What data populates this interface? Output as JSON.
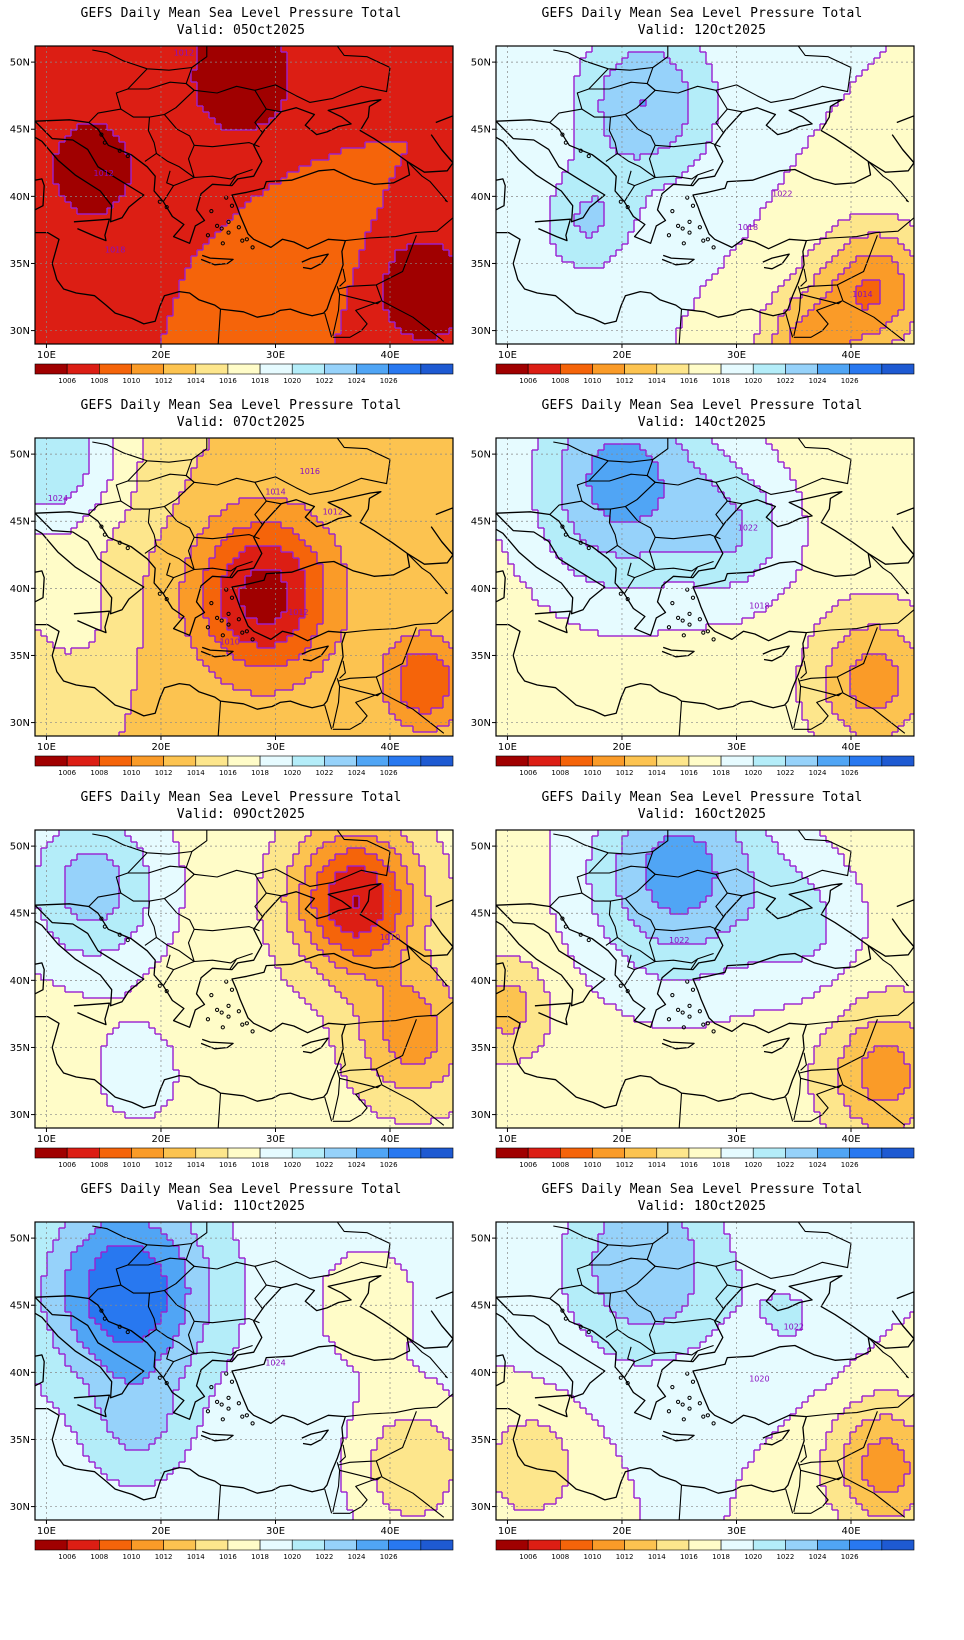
{
  "palette": [
    "#a00000",
    "#dc1e14",
    "#f5640a",
    "#fa9b28",
    "#fcc350",
    "#fde68c",
    "#fffcc8",
    "#e6fbff",
    "#b4edf9",
    "#96d2fa",
    "#50a5f5",
    "#2878f0",
    "#1e5ad2"
  ],
  "contour_color": "#9a1fd1",
  "axes": {
    "lon_ticks": [
      "10E",
      "20E",
      "30E",
      "40E"
    ],
    "lat_ticks": [
      "50N",
      "45N",
      "40N",
      "35N",
      "30N"
    ]
  },
  "legend": {
    "labels": [
      "1006",
      "1008",
      "1010",
      "1012",
      "1014",
      "1016",
      "1018",
      "1020",
      "1022",
      "1024",
      "1026"
    ]
  },
  "panels": [
    {
      "title": "GEFS Daily Mean Sea Level Pressure Total",
      "valid": "Valid: 05Oct2025",
      "base": 8,
      "centers": [
        [
          14,
          42,
          -5,
          3.5
        ],
        [
          43,
          33,
          -6,
          3.5
        ],
        [
          27,
          49,
          -4,
          5
        ],
        [
          33,
          37,
          1,
          4
        ]
      ],
      "labels": [
        {
          "text": "1012",
          "lon": 15,
          "lat": 41.5
        },
        {
          "text": "1018",
          "lon": 16,
          "lat": 35.8
        },
        {
          "text": "1012",
          "lon": 22,
          "lat": 50.5
        }
      ]
    },
    {
      "title": "GEFS Daily Mean Sea Level Pressure Total",
      "valid": "Valid: 12Oct2025",
      "base": 18,
      "centers": [
        [
          22,
          47,
          6,
          6
        ],
        [
          17,
          38,
          4,
          4
        ],
        [
          42,
          33,
          -8,
          5
        ],
        [
          36,
          29,
          -6,
          4
        ]
      ],
      "labels": [
        {
          "text": "1022",
          "lon": 34,
          "lat": 40
        },
        {
          "text": "1018",
          "lon": 31,
          "lat": 37.5
        },
        {
          "text": "1014",
          "lon": 41,
          "lat": 32.5
        }
      ]
    },
    {
      "title": "GEFS Daily Mean Sea Level Pressure Total",
      "valid": "Valid: 07Oct2025",
      "base": 14,
      "centers": [
        [
          29,
          39.5,
          -9,
          6
        ],
        [
          43,
          33,
          -6,
          3.5
        ],
        [
          10,
          50,
          8,
          7
        ],
        [
          12,
          38,
          3,
          4
        ]
      ],
      "labels": [
        {
          "text": "1016",
          "lon": 33,
          "lat": 48.5
        },
        {
          "text": "1014",
          "lon": 30,
          "lat": 47
        },
        {
          "text": "1012",
          "lon": 35,
          "lat": 45.5
        },
        {
          "text": "1012",
          "lon": 32,
          "lat": 38
        },
        {
          "text": "1010",
          "lon": 26,
          "lat": 35.8
        },
        {
          "text": "1024",
          "lon": 11,
          "lat": 46.5
        }
      ]
    },
    {
      "title": "GEFS Daily Mean Sea Level Pressure Total",
      "valid": "Valid: 14Oct2025",
      "base": 17,
      "centers": [
        [
          20,
          48,
          8,
          8
        ],
        [
          42,
          33,
          -6,
          5
        ],
        [
          30,
          44,
          4,
          5
        ]
      ],
      "labels": [
        {
          "text": "1022",
          "lon": 31,
          "lat": 44.3
        },
        {
          "text": "1018",
          "lon": 32,
          "lat": 38.5
        }
      ]
    },
    {
      "title": "GEFS Daily Mean Sea Level Pressure Total",
      "valid": "Valid: 09Oct2025",
      "base": 17,
      "centers": [
        [
          37,
          46,
          -11,
          5.5
        ],
        [
          42,
          36,
          -6,
          5
        ],
        [
          14,
          47,
          6,
          6
        ],
        [
          18,
          33,
          2,
          4
        ]
      ],
      "labels": [
        {
          "text": "1010",
          "lon": 40,
          "lat": 43
        }
      ]
    },
    {
      "title": "GEFS Daily Mean Sea Level Pressure Total",
      "valid": "Valid: 16Oct2025",
      "base": 17,
      "centers": [
        [
          25,
          48,
          8,
          8
        ],
        [
          43,
          33,
          -6,
          5
        ],
        [
          10,
          38,
          -4,
          3.5
        ],
        [
          36,
          44,
          3,
          5
        ]
      ],
      "labels": [
        {
          "text": "1022",
          "lon": 25,
          "lat": 42.8
        }
      ]
    },
    {
      "title": "GEFS Daily Mean Sea Level Pressure Total",
      "valid": "Valid: 11Oct2025",
      "base": 19,
      "centers": [
        [
          17,
          46,
          9,
          7
        ],
        [
          42,
          33,
          -5,
          5
        ],
        [
          18,
          36,
          3,
          4
        ],
        [
          38,
          45,
          -2,
          5
        ]
      ],
      "labels": [
        {
          "text": "1024",
          "lon": 30,
          "lat": 40.5
        }
      ]
    },
    {
      "title": "GEFS Daily Mean Sea Level Pressure Total",
      "valid": "Valid: 18Oct2025",
      "base": 18,
      "centers": [
        [
          22,
          48,
          6,
          7
        ],
        [
          43,
          33,
          -7,
          5
        ],
        [
          12,
          33,
          -4,
          4
        ],
        [
          35,
          44,
          2,
          5
        ]
      ],
      "labels": [
        {
          "text": "1022",
          "lon": 35,
          "lat": 43.2
        },
        {
          "text": "1020",
          "lon": 32,
          "lat": 39.3
        }
      ]
    }
  ]
}
